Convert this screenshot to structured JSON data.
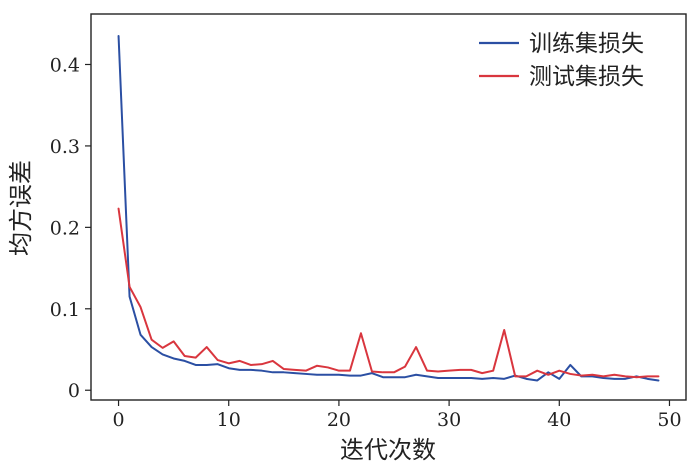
{
  "chart_data": {
    "type": "line",
    "title": "",
    "xlabel": "迭代次数",
    "ylabel": "均方误差",
    "xlim": [
      -2.5,
      51.5
    ],
    "ylim": [
      -0.012,
      0.462
    ],
    "xticks": [
      0,
      10,
      20,
      30,
      40,
      50
    ],
    "xtick_labels": [
      "0",
      "10",
      "20",
      "30",
      "40",
      "50"
    ],
    "yticks": [
      0,
      0.1,
      0.2,
      0.3,
      0.4
    ],
    "ytick_labels": [
      "0",
      "0.1",
      "0.2",
      "0.3",
      "0.4"
    ],
    "grid": false,
    "legend_position": "top-right",
    "x": [
      0,
      1,
      2,
      3,
      4,
      5,
      6,
      7,
      8,
      9,
      10,
      11,
      12,
      13,
      14,
      15,
      16,
      17,
      18,
      19,
      20,
      21,
      22,
      23,
      24,
      25,
      26,
      27,
      28,
      29,
      30,
      31,
      32,
      33,
      34,
      35,
      36,
      37,
      38,
      39,
      40,
      41,
      42,
      43,
      44,
      45,
      46,
      47,
      48,
      49
    ],
    "series": [
      {
        "name": "训练集损失",
        "color": "#2b4fa3",
        "values": [
          0.435,
          0.115,
          0.068,
          0.053,
          0.044,
          0.039,
          0.036,
          0.031,
          0.031,
          0.032,
          0.027,
          0.025,
          0.025,
          0.024,
          0.022,
          0.022,
          0.021,
          0.02,
          0.019,
          0.019,
          0.019,
          0.018,
          0.018,
          0.021,
          0.016,
          0.016,
          0.016,
          0.019,
          0.017,
          0.015,
          0.015,
          0.015,
          0.015,
          0.014,
          0.015,
          0.014,
          0.018,
          0.014,
          0.012,
          0.022,
          0.014,
          0.031,
          0.017,
          0.017,
          0.015,
          0.014,
          0.014,
          0.017,
          0.014,
          0.012
        ]
      },
      {
        "name": "测试集损失",
        "color": "#d9363e",
        "values": [
          0.223,
          0.127,
          0.102,
          0.062,
          0.052,
          0.06,
          0.042,
          0.04,
          0.053,
          0.037,
          0.033,
          0.036,
          0.031,
          0.032,
          0.036,
          0.026,
          0.025,
          0.024,
          0.03,
          0.028,
          0.024,
          0.024,
          0.07,
          0.023,
          0.022,
          0.022,
          0.029,
          0.053,
          0.024,
          0.023,
          0.024,
          0.025,
          0.025,
          0.021,
          0.024,
          0.074,
          0.017,
          0.017,
          0.024,
          0.019,
          0.024,
          0.02,
          0.018,
          0.019,
          0.017,
          0.019,
          0.017,
          0.016,
          0.017,
          0.017
        ]
      }
    ]
  }
}
